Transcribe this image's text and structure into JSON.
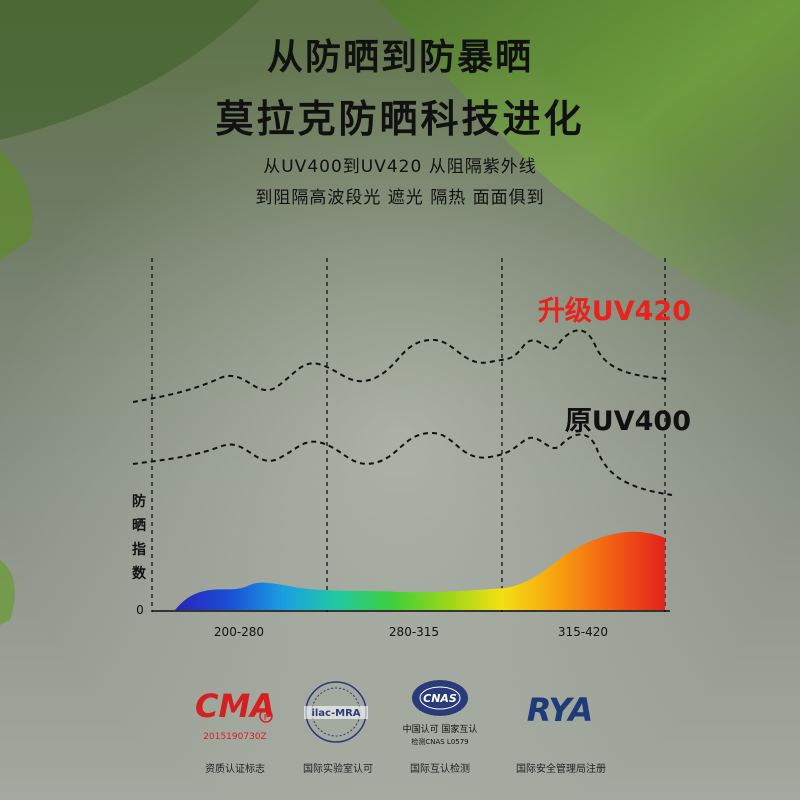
{
  "header": {
    "title_line1": "从防晒到防暴晒",
    "title_line2": "莫拉克防晒科技进化",
    "subtitle_line1": "从UV400到UV420 从阻隔紫外线",
    "subtitle_line2": "到阻隔高波段光 遮光 隔热 面面俱到"
  },
  "chart_data": {
    "type": "area",
    "ylabel": "防晒指数",
    "y_zero_label": "0",
    "x_bands": [
      "200-280",
      "280-315",
      "315-420"
    ],
    "series": [
      {
        "name": "升级UV420",
        "color": "#e8221c"
      },
      {
        "name": "原UV400",
        "color": "#111111"
      }
    ],
    "spectrum_colors": [
      "#2b23b8",
      "#1a4fd6",
      "#19a0e0",
      "#22c9a0",
      "#3fcf3a",
      "#9ad61a",
      "#f2e012",
      "#f7a20f",
      "#f25f14",
      "#e3221c"
    ]
  },
  "certifications": [
    {
      "name": "cma-logo",
      "logo_text": "CMA",
      "code": "2015190730Z",
      "label": "资质认证标志"
    },
    {
      "name": "ilac-mra-logo",
      "logo_text": "ilac-MRA",
      "label": "国际实验室认可"
    },
    {
      "name": "cnas-logo",
      "logo_text": "CNAS",
      "sub1": "中国认可 国家互认",
      "sub2": "检测CNAS L0579",
      "label": "国际互认检测"
    },
    {
      "name": "rya-logo",
      "logo_text": "RYA",
      "label": "国际安全管理局注册"
    }
  ]
}
